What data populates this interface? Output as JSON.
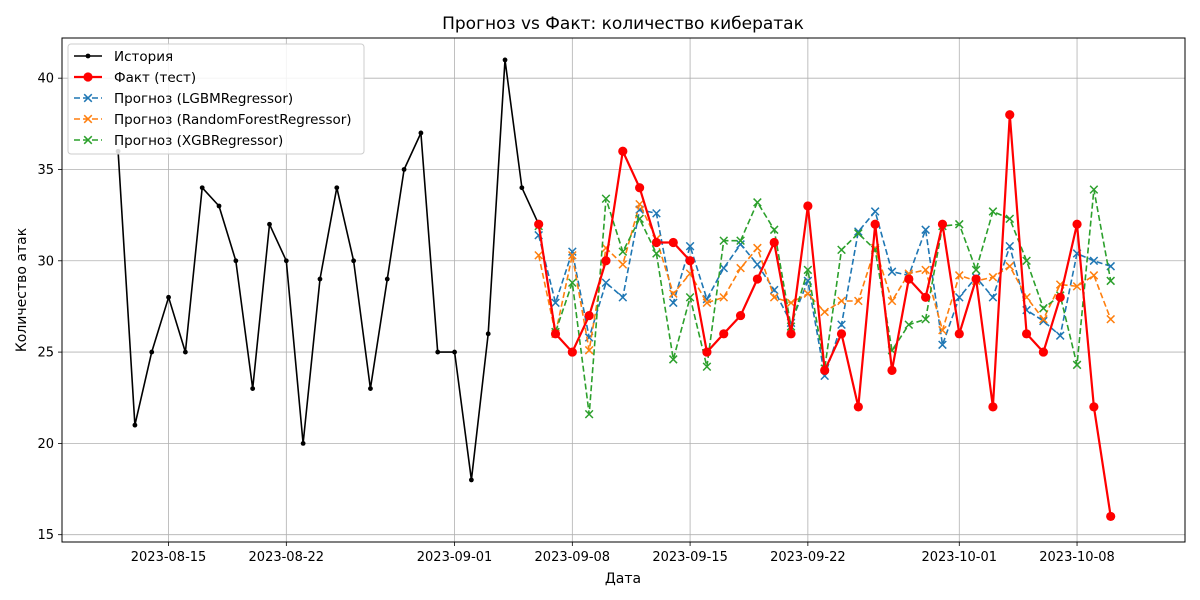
{
  "chart_data": {
    "type": "line",
    "title": "Прогноз vs Факт: количество кибератак",
    "xlabel": "Дата",
    "ylabel": "Количество атак",
    "ylim": [
      14.6,
      42.2
    ],
    "xlim": [
      "2023-08-08T16:00",
      "2023-10-14T10:00"
    ],
    "yticks": [
      15,
      20,
      25,
      30,
      35,
      40
    ],
    "xticks": [
      "2023-08-15",
      "2023-08-22",
      "2023-09-01",
      "2023-09-08",
      "2023-09-15",
      "2023-09-22",
      "2023-10-01",
      "2023-10-08"
    ],
    "grid": true,
    "legend_position": "top-left",
    "series": [
      {
        "name": "История",
        "color": "#000000",
        "style": "solid",
        "marker": "dot",
        "points": [
          [
            "2023-08-12",
            36
          ],
          [
            "2023-08-13",
            21
          ],
          [
            "2023-08-14",
            25
          ],
          [
            "2023-08-15",
            28
          ],
          [
            "2023-08-16",
            25
          ],
          [
            "2023-08-17",
            34
          ],
          [
            "2023-08-18",
            33
          ],
          [
            "2023-08-19",
            30
          ],
          [
            "2023-08-20",
            23
          ],
          [
            "2023-08-21",
            32
          ],
          [
            "2023-08-22",
            30
          ],
          [
            "2023-08-23",
            20
          ],
          [
            "2023-08-24",
            29
          ],
          [
            "2023-08-25",
            34
          ],
          [
            "2023-08-26",
            30
          ],
          [
            "2023-08-27",
            23
          ],
          [
            "2023-08-28",
            29
          ],
          [
            "2023-08-29",
            35
          ],
          [
            "2023-08-30",
            37
          ],
          [
            "2023-08-31",
            25
          ],
          [
            "2023-09-01",
            25
          ],
          [
            "2023-09-02",
            18
          ],
          [
            "2023-09-03",
            26
          ],
          [
            "2023-09-04",
            41
          ],
          [
            "2023-09-05",
            34
          ],
          [
            "2023-09-06",
            32
          ]
        ]
      },
      {
        "name": "Факт (тест)",
        "color": "#ff0000",
        "style": "solid",
        "marker": "circle",
        "points": [
          [
            "2023-09-06",
            32
          ],
          [
            "2023-09-07",
            26
          ],
          [
            "2023-09-08",
            25
          ],
          [
            "2023-09-09",
            27
          ],
          [
            "2023-09-10",
            30
          ],
          [
            "2023-09-11",
            36
          ],
          [
            "2023-09-12",
            34
          ],
          [
            "2023-09-13",
            31
          ],
          [
            "2023-09-14",
            31
          ],
          [
            "2023-09-15",
            30
          ],
          [
            "2023-09-16",
            25
          ],
          [
            "2023-09-17",
            26
          ],
          [
            "2023-09-18",
            27
          ],
          [
            "2023-09-19",
            29
          ],
          [
            "2023-09-20",
            31
          ],
          [
            "2023-09-21",
            26
          ],
          [
            "2023-09-22",
            33
          ],
          [
            "2023-09-23",
            24
          ],
          [
            "2023-09-24",
            26
          ],
          [
            "2023-09-25",
            22
          ],
          [
            "2023-09-26",
            32
          ],
          [
            "2023-09-27",
            24
          ],
          [
            "2023-09-28",
            29
          ],
          [
            "2023-09-29",
            28
          ],
          [
            "2023-09-30",
            32
          ],
          [
            "2023-10-01",
            26
          ],
          [
            "2023-10-02",
            29
          ],
          [
            "2023-10-03",
            22
          ],
          [
            "2023-10-04",
            38
          ],
          [
            "2023-10-05",
            26
          ],
          [
            "2023-10-06",
            25
          ],
          [
            "2023-10-07",
            28
          ],
          [
            "2023-10-08",
            32
          ],
          [
            "2023-10-09",
            22
          ],
          [
            "2023-10-10",
            16
          ]
        ]
      },
      {
        "name": "Прогноз (LGBMRegressor)",
        "color": "#1f77b4",
        "style": "dashed",
        "marker": "x",
        "points": [
          [
            "2023-09-06",
            31.4
          ],
          [
            "2023-09-07",
            27.7
          ],
          [
            "2023-09-08",
            30.5
          ],
          [
            "2023-09-09",
            25.8
          ],
          [
            "2023-09-10",
            28.8
          ],
          [
            "2023-09-11",
            28.0
          ],
          [
            "2023-09-12",
            32.8
          ],
          [
            "2023-09-13",
            32.6
          ],
          [
            "2023-09-14",
            27.7
          ],
          [
            "2023-09-15",
            30.8
          ],
          [
            "2023-09-16",
            27.9
          ],
          [
            "2023-09-17",
            29.6
          ],
          [
            "2023-09-18",
            30.9
          ],
          [
            "2023-09-19",
            29.8
          ],
          [
            "2023-09-20",
            28.4
          ],
          [
            "2023-09-21",
            26.6
          ],
          [
            "2023-09-22",
            28.9
          ],
          [
            "2023-09-23",
            23.7
          ],
          [
            "2023-09-24",
            26.5
          ],
          [
            "2023-09-25",
            31.6
          ],
          [
            "2023-09-26",
            32.7
          ],
          [
            "2023-09-27",
            29.4
          ],
          [
            "2023-09-28",
            29.2
          ],
          [
            "2023-09-29",
            31.7
          ],
          [
            "2023-09-30",
            25.4
          ],
          [
            "2023-10-01",
            28.0
          ],
          [
            "2023-10-02",
            29.1
          ],
          [
            "2023-10-03",
            28.0
          ],
          [
            "2023-10-04",
            30.8
          ],
          [
            "2023-10-05",
            27.3
          ],
          [
            "2023-10-06",
            26.7
          ],
          [
            "2023-10-07",
            25.9
          ],
          [
            "2023-10-08",
            30.4
          ],
          [
            "2023-10-09",
            30.0
          ],
          [
            "2023-10-10",
            29.7
          ]
        ]
      },
      {
        "name": "Прогноз (RandomForestRegressor)",
        "color": "#ff7f0e",
        "style": "dashed",
        "marker": "x",
        "points": [
          [
            "2023-09-06",
            30.3
          ],
          [
            "2023-09-07",
            26.0
          ],
          [
            "2023-09-08",
            30.3
          ],
          [
            "2023-09-09",
            25.1
          ],
          [
            "2023-09-10",
            30.7
          ],
          [
            "2023-09-11",
            29.8
          ],
          [
            "2023-09-12",
            33.1
          ],
          [
            "2023-09-13",
            31.2
          ],
          [
            "2023-09-14",
            28.2
          ],
          [
            "2023-09-15",
            29.3
          ],
          [
            "2023-09-16",
            27.7
          ],
          [
            "2023-09-17",
            28.0
          ],
          [
            "2023-09-18",
            29.6
          ],
          [
            "2023-09-19",
            30.7
          ],
          [
            "2023-09-20",
            28.0
          ],
          [
            "2023-09-21",
            27.7
          ],
          [
            "2023-09-22",
            28.2
          ],
          [
            "2023-09-23",
            27.2
          ],
          [
            "2023-09-24",
            27.8
          ],
          [
            "2023-09-25",
            27.8
          ],
          [
            "2023-09-26",
            30.7
          ],
          [
            "2023-09-27",
            27.8
          ],
          [
            "2023-09-28",
            29.3
          ],
          [
            "2023-09-29",
            29.5
          ],
          [
            "2023-09-30",
            26.2
          ],
          [
            "2023-10-01",
            29.2
          ],
          [
            "2023-10-02",
            28.9
          ],
          [
            "2023-10-03",
            29.1
          ],
          [
            "2023-10-04",
            29.7
          ],
          [
            "2023-10-05",
            28.0
          ],
          [
            "2023-10-06",
            26.8
          ],
          [
            "2023-10-07",
            28.7
          ],
          [
            "2023-10-08",
            28.6
          ],
          [
            "2023-10-09",
            29.2
          ],
          [
            "2023-10-10",
            26.8
          ]
        ]
      },
      {
        "name": "Прогноз (XGBRegressor)",
        "color": "#2ca02c",
        "style": "dashed",
        "marker": "x",
        "points": [
          [
            "2023-09-06",
            31.9
          ],
          [
            "2023-09-07",
            26.1
          ],
          [
            "2023-09-08",
            28.8
          ],
          [
            "2023-09-09",
            21.6
          ],
          [
            "2023-09-10",
            33.4
          ],
          [
            "2023-09-11",
            30.5
          ],
          [
            "2023-09-12",
            32.3
          ],
          [
            "2023-09-13",
            30.4
          ],
          [
            "2023-09-14",
            24.6
          ],
          [
            "2023-09-15",
            28.0
          ],
          [
            "2023-09-16",
            24.2
          ],
          [
            "2023-09-17",
            31.1
          ],
          [
            "2023-09-18",
            31.1
          ],
          [
            "2023-09-19",
            33.2
          ],
          [
            "2023-09-20",
            31.7
          ],
          [
            "2023-09-21",
            26.4
          ],
          [
            "2023-09-22",
            29.5
          ],
          [
            "2023-09-23",
            24.1
          ],
          [
            "2023-09-24",
            30.6
          ],
          [
            "2023-09-25",
            31.5
          ],
          [
            "2023-09-26",
            30.6
          ],
          [
            "2023-09-27",
            25.1
          ],
          [
            "2023-09-28",
            26.5
          ],
          [
            "2023-09-29",
            26.8
          ],
          [
            "2023-09-30",
            31.9
          ],
          [
            "2023-10-01",
            32.0
          ],
          [
            "2023-10-02",
            29.5
          ],
          [
            "2023-10-03",
            32.7
          ],
          [
            "2023-10-04",
            32.3
          ],
          [
            "2023-10-05",
            30.0
          ],
          [
            "2023-10-06",
            27.4
          ],
          [
            "2023-10-07",
            28.1
          ],
          [
            "2023-10-08",
            24.3
          ],
          [
            "2023-10-09",
            33.9
          ],
          [
            "2023-10-10",
            28.9
          ]
        ]
      }
    ]
  }
}
